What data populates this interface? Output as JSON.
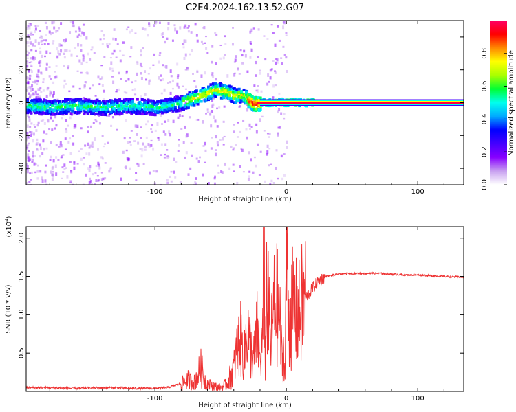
{
  "title": "C2E4.2024.162.13.52.G07",
  "chart_data": [
    {
      "type": "heatmap",
      "xlabel": "Height of straight line (km)",
      "ylabel": "Frequency (Hz)",
      "xlim": [
        -198,
        135
      ],
      "ylim": [
        -50,
        50
      ],
      "xticks": [
        {
          "value": -100,
          "label": "-100"
        },
        {
          "value": 0,
          "label": "0"
        },
        {
          "value": 100,
          "label": "100"
        }
      ],
      "yticks": [
        {
          "value": 40,
          "label": "40"
        },
        {
          "value": 20,
          "label": "20"
        },
        {
          "value": 0,
          "label": "0"
        },
        {
          "value": -20,
          "label": "-20"
        },
        {
          "value": -40,
          "label": "-40"
        }
      ],
      "ridge": {
        "x": [
          -198,
          -180,
          -160,
          -140,
          -120,
          -100,
          -90,
          -80,
          -70,
          -60,
          -55,
          -50,
          -45,
          -40,
          -35,
          -30,
          -25,
          -20,
          -10,
          0,
          10,
          20,
          135
        ],
        "freq": [
          -2,
          -3,
          -2,
          -3,
          -2,
          -3,
          -2,
          0,
          3,
          6,
          8,
          7,
          6,
          4,
          5,
          2,
          -1,
          0,
          0,
          0,
          0,
          0,
          0
        ]
      },
      "colorbar": {
        "label": "Normalized spectral amplitude",
        "range": [
          0,
          1
        ],
        "ticks": [
          {
            "value": 0.0,
            "label": "0.0"
          },
          {
            "value": 0.2,
            "label": "0.2"
          },
          {
            "value": 0.4,
            "label": "0.4"
          },
          {
            "value": 0.6,
            "label": "0.6"
          },
          {
            "value": 0.8,
            "label": "0.8"
          }
        ],
        "colors": [
          "#ffffff",
          "#c8a0f0",
          "#8800ff",
          "#4400ff",
          "#0000ff",
          "#00aaff",
          "#00ffee",
          "#00ff33",
          "#aaff00",
          "#ffff00",
          "#ff8800",
          "#ff0000",
          "#ff0066"
        ]
      }
    },
    {
      "type": "line",
      "xlabel": "Height of straight line (km)",
      "ylabel": "SNR (10 * v/v)",
      "yscale_label": "(x10",
      "yscale_exponent": "4",
      "yscale_close": ")",
      "xlim": [
        -198,
        135
      ],
      "ylim": [
        0,
        2.15
      ],
      "xticks": [
        {
          "value": -100,
          "label": "-100"
        },
        {
          "value": 0,
          "label": "0"
        },
        {
          "value": 100,
          "label": "100"
        }
      ],
      "yticks": [
        {
          "value": 0.5,
          "label": "0.5"
        },
        {
          "value": 1.0,
          "label": "1.0"
        },
        {
          "value": 1.5,
          "label": "1.5"
        },
        {
          "value": 2.0,
          "label": "2.0"
        }
      ],
      "color": "#ee3333",
      "series": [
        {
          "x": [
            -198,
            -180,
            -160,
            -140,
            -130,
            -120,
            -100,
            -90,
            -85,
            -80,
            -75,
            -70,
            -65,
            -62,
            -60,
            -55,
            -50,
            -45,
            -40,
            -38,
            -35,
            -32,
            -30,
            -28,
            -25,
            -22,
            -20,
            -18,
            -17,
            -16,
            -15,
            -12,
            -10,
            -8,
            -5,
            -3,
            -2,
            -1,
            0,
            2,
            5,
            8,
            10,
            13,
            16,
            20,
            25,
            30,
            40,
            50,
            60,
            70,
            80,
            90,
            100,
            110,
            120,
            135
          ],
          "y": [
            0.05,
            0.05,
            0.04,
            0.05,
            0.05,
            0.04,
            0.04,
            0.05,
            0.08,
            0.1,
            0.15,
            0.12,
            0.3,
            0.15,
            0.1,
            0.07,
            0.05,
            0.1,
            0.3,
            0.5,
            0.7,
            0.4,
            0.9,
            0.6,
            0.4,
            0.8,
            0.4,
            0.7,
            2.1,
            0.4,
            1.4,
            0.6,
            1.0,
            1.2,
            0.9,
            0.3,
            0.6,
            0.15,
            2.1,
            0.9,
            1.1,
            1.0,
            1.0,
            1.2,
            1.25,
            1.35,
            1.45,
            1.5,
            1.53,
            1.54,
            1.54,
            1.54,
            1.53,
            1.52,
            1.52,
            1.51,
            1.5,
            1.49
          ]
        }
      ]
    }
  ]
}
